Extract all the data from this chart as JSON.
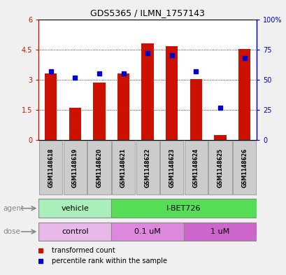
{
  "title": "GDS5365 / ILMN_1757143",
  "samples": [
    "GSM1148618",
    "GSM1148619",
    "GSM1148620",
    "GSM1148621",
    "GSM1148622",
    "GSM1148623",
    "GSM1148624",
    "GSM1148625",
    "GSM1148626"
  ],
  "bar_heights": [
    3.3,
    1.6,
    2.85,
    3.3,
    4.8,
    4.65,
    3.05,
    0.25,
    4.52
  ],
  "percentile_ranks": [
    57,
    52,
    55,
    55,
    72,
    70,
    57,
    27,
    68
  ],
  "bar_color": "#cc1100",
  "dot_color": "#0000cc",
  "ylim_left": [
    0,
    6
  ],
  "ylim_right": [
    0,
    100
  ],
  "yticks_left": [
    0,
    1.5,
    3.0,
    4.5,
    6
  ],
  "yticks_right": [
    0,
    25,
    50,
    75,
    100
  ],
  "ytick_labels_left": [
    "0",
    "1.5",
    "3",
    "4.5",
    "6"
  ],
  "ytick_labels_right": [
    "0",
    "25",
    "50",
    "75",
    "100%"
  ],
  "agent_groups": [
    {
      "label": "vehicle",
      "start": 0,
      "end": 3,
      "color": "#aaeebb"
    },
    {
      "label": "I-BET726",
      "start": 3,
      "end": 9,
      "color": "#55dd55"
    }
  ],
  "dose_groups": [
    {
      "label": "control",
      "start": 0,
      "end": 3,
      "color": "#e8b8e8"
    },
    {
      "label": "0.1 uM",
      "start": 3,
      "end": 6,
      "color": "#dd88dd"
    },
    {
      "label": "1 uM",
      "start": 6,
      "end": 9,
      "color": "#cc66cc"
    }
  ],
  "legend_bar_label": "transformed count",
  "legend_dot_label": "percentile rank within the sample",
  "label_agent": "agent",
  "label_dose": "dose",
  "bg_color": "#f0f0f0",
  "plot_bg": "#ffffff",
  "sample_box_color": "#cccccc",
  "bar_width": 0.5
}
